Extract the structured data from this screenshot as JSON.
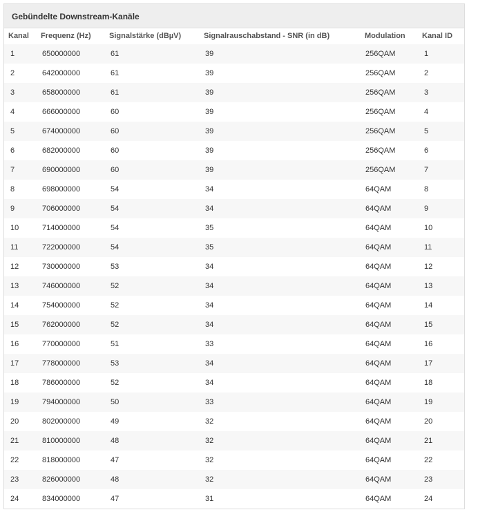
{
  "header": {
    "title": "Gebündelte Downstream-Kanäle"
  },
  "table": {
    "columns": [
      "Kanal",
      "Frequenz (Hz)",
      "Signalstärke (dBµV)",
      "Signalrauschabstand - SNR (in dB)",
      "Modulation",
      "Kanal ID"
    ],
    "rows": [
      [
        1,
        650000000,
        61,
        39,
        "256QAM",
        1
      ],
      [
        2,
        642000000,
        61,
        39,
        "256QAM",
        2
      ],
      [
        3,
        658000000,
        61,
        39,
        "256QAM",
        3
      ],
      [
        4,
        666000000,
        60,
        39,
        "256QAM",
        4
      ],
      [
        5,
        674000000,
        60,
        39,
        "256QAM",
        5
      ],
      [
        6,
        682000000,
        60,
        39,
        "256QAM",
        6
      ],
      [
        7,
        690000000,
        60,
        39,
        "256QAM",
        7
      ],
      [
        8,
        698000000,
        54,
        34,
        "64QAM",
        8
      ],
      [
        9,
        706000000,
        54,
        34,
        "64QAM",
        9
      ],
      [
        10,
        714000000,
        54,
        35,
        "64QAM",
        10
      ],
      [
        11,
        722000000,
        54,
        35,
        "64QAM",
        11
      ],
      [
        12,
        730000000,
        53,
        34,
        "64QAM",
        12
      ],
      [
        13,
        746000000,
        52,
        34,
        "64QAM",
        13
      ],
      [
        14,
        754000000,
        52,
        34,
        "64QAM",
        14
      ],
      [
        15,
        762000000,
        52,
        34,
        "64QAM",
        15
      ],
      [
        16,
        770000000,
        51,
        33,
        "64QAM",
        16
      ],
      [
        17,
        778000000,
        53,
        34,
        "64QAM",
        17
      ],
      [
        18,
        786000000,
        52,
        34,
        "64QAM",
        18
      ],
      [
        19,
        794000000,
        50,
        33,
        "64QAM",
        19
      ],
      [
        20,
        802000000,
        49,
        32,
        "64QAM",
        20
      ],
      [
        21,
        810000000,
        48,
        32,
        "64QAM",
        21
      ],
      [
        22,
        818000000,
        47,
        32,
        "64QAM",
        22
      ],
      [
        23,
        826000000,
        48,
        32,
        "64QAM",
        23
      ],
      [
        24,
        834000000,
        47,
        31,
        "64QAM",
        24
      ]
    ]
  }
}
